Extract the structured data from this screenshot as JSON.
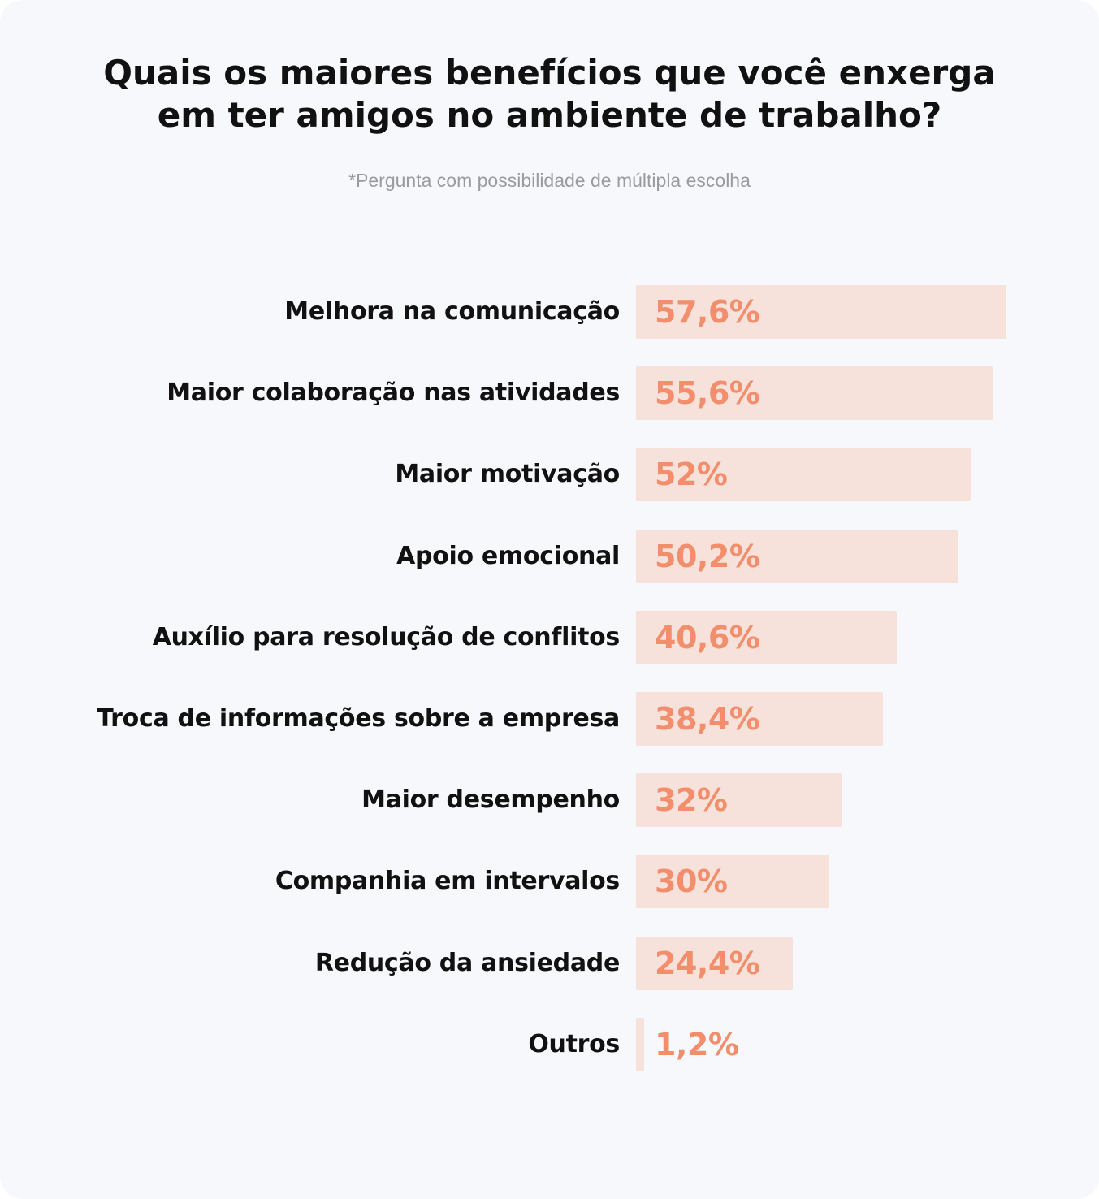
{
  "header": {
    "title_line1": "Quais os maiores benefícios que você enxerga",
    "title_line2": "em ter amigos no ambiente de trabalho?",
    "subtitle": "*Pergunta com possibilidade de múltipla escolha"
  },
  "colors": {
    "background": "#f7f8fc",
    "bar": "#f7e1db",
    "value_text": "#f28e6c",
    "label_text": "#111111",
    "subtitle_text": "#9a9a9f"
  },
  "chart_data": {
    "type": "bar",
    "orientation": "horizontal",
    "title": "Quais os maiores benefícios que você enxerga em ter amigos no ambiente de trabalho?",
    "subtitle": "*Pergunta com possibilidade de múltipla escolha",
    "xlim": [
      0,
      57.6
    ],
    "grid": false,
    "categories": [
      "Melhora na comunicação",
      "Maior colaboração nas atividades",
      "Maior motivação",
      "Apoio emocional",
      "Auxílio para resolução de conflitos",
      "Troca de informações sobre a empresa",
      "Maior desempenho",
      "Companhia em intervalos",
      "Redução da ansiedade",
      "Outros"
    ],
    "values": [
      57.6,
      55.6,
      52,
      50.2,
      40.6,
      38.4,
      32,
      30,
      24.4,
      1.2
    ],
    "value_labels": [
      "57,6%",
      "55,6%",
      "52%",
      "50,2%",
      "40,6%",
      "38,4%",
      "32%",
      "30%",
      "24,4%",
      "1,2%"
    ]
  }
}
